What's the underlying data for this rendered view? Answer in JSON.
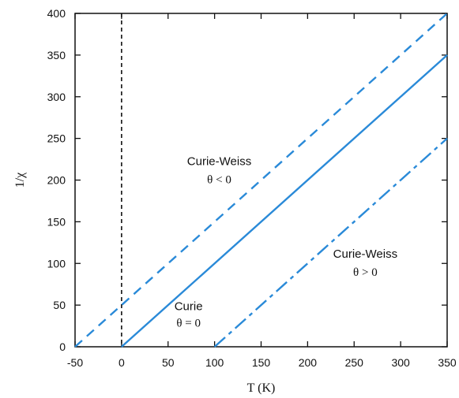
{
  "chart_data": {
    "type": "line",
    "title": "",
    "xlabel": "T (K)",
    "ylabel": "1/χ",
    "xlim": [
      -50,
      350
    ],
    "ylim": [
      0,
      400
    ],
    "xticks": [
      -50,
      0,
      50,
      100,
      150,
      200,
      250,
      300,
      350
    ],
    "yticks": [
      0,
      50,
      100,
      150,
      200,
      250,
      300,
      350,
      400
    ],
    "grid": false,
    "series": [
      {
        "style": "dashed",
        "color": "#2a8ad8",
        "x": [
          -50,
          350
        ],
        "y": [
          0,
          400
        ]
      },
      {
        "style": "solid",
        "color": "#2a8ad8",
        "x": [
          0,
          350
        ],
        "y": [
          0,
          350
        ]
      },
      {
        "style": "dashdot",
        "color": "#2a8ad8",
        "x": [
          100,
          350
        ],
        "y": [
          0,
          250
        ]
      }
    ],
    "vline": {
      "x": 0,
      "style": "dashed",
      "color": "#111111"
    },
    "annotations": [
      {
        "name": "cw-neg-name",
        "text": "Curie-Weiss",
        "x": 105,
        "y": 218,
        "font": "sans"
      },
      {
        "name": "cw-neg-cond",
        "text": "θ < 0",
        "x": 105,
        "y": 196,
        "font": "serif"
      },
      {
        "name": "curie-name",
        "text": "Curie",
        "x": 72,
        "y": 44,
        "font": "sans"
      },
      {
        "name": "curie-cond",
        "text": "θ = 0",
        "x": 72,
        "y": 24,
        "font": "serif"
      },
      {
        "name": "cw-pos-name",
        "text": "Curie-Weiss",
        "x": 262,
        "y": 107,
        "font": "sans"
      },
      {
        "name": "cw-pos-cond",
        "text": "θ > 0",
        "x": 262,
        "y": 85,
        "font": "serif"
      }
    ]
  }
}
